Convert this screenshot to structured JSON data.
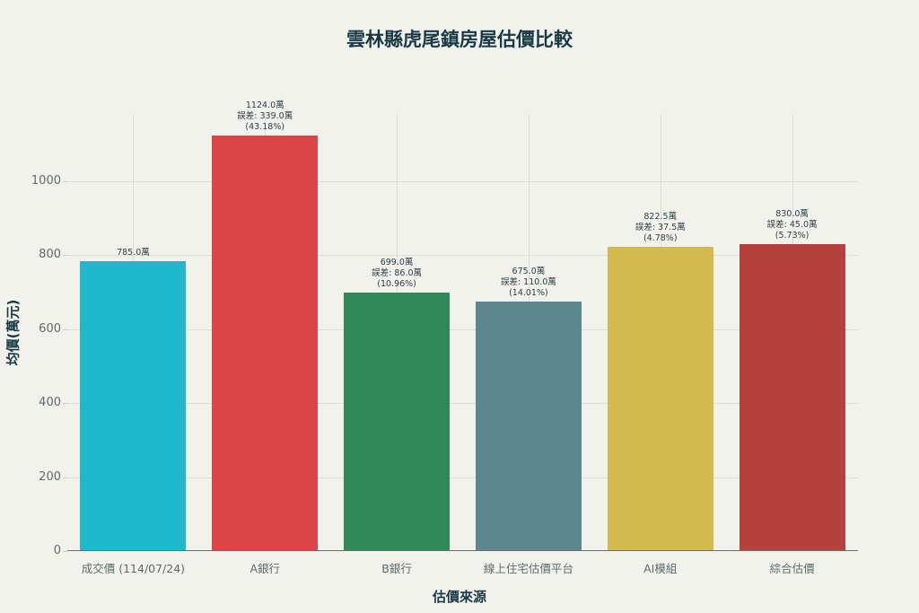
{
  "chart_data": {
    "type": "bar",
    "title": "雲林縣虎尾鎮房屋估價比較",
    "xlabel": "估價來源",
    "ylabel": "均價(萬元)",
    "categories": [
      "成交價 (114/07/24)",
      "A銀行",
      "B銀行",
      "線上住宅估價平台",
      "AI模組",
      "綜合估價"
    ],
    "values": [
      785.0,
      1124.0,
      699.0,
      675.0,
      822.5,
      830.0
    ],
    "colors": [
      "#1fb8cd",
      "#db4545",
      "#2e8b57",
      "#5d878f",
      "#d2ba4c",
      "#b4413c"
    ],
    "data_labels": [
      [
        "785.0萬"
      ],
      [
        "1124.0萬",
        "誤差: 339.0萬",
        "(43.18%)"
      ],
      [
        "699.0萬",
        "誤差: 86.0萬",
        "(10.96%)"
      ],
      [
        "675.0萬",
        "誤差: 110.0萬",
        "(14.01%)"
      ],
      [
        "822.5萬",
        "誤差: 37.5萬",
        "(4.78%)"
      ],
      [
        "830.0萬",
        "誤差: 45.0萬",
        "(5.73%)"
      ]
    ],
    "errors": [
      null,
      339.0,
      86.0,
      110.0,
      37.5,
      45.0
    ],
    "error_pct": [
      null,
      43.18,
      10.96,
      14.01,
      4.78,
      5.73
    ],
    "yticks": [
      0,
      200,
      400,
      600,
      800,
      1000
    ],
    "ylim": [
      0,
      1180
    ],
    "grid": true,
    "legend": "none"
  }
}
